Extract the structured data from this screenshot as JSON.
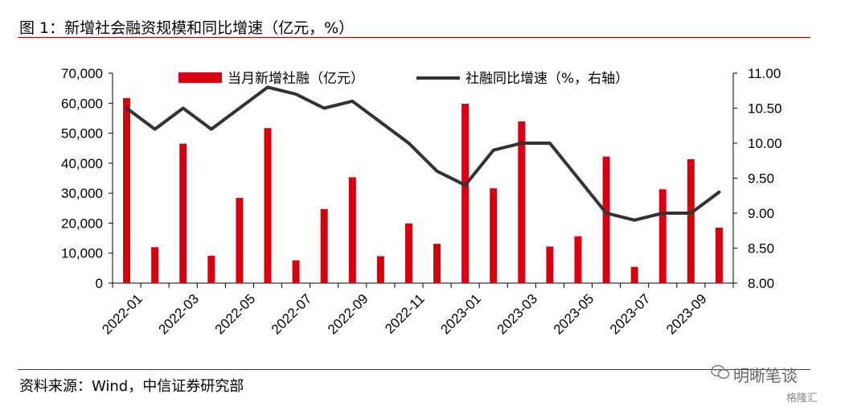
{
  "title": "图 1：新增社会融资规模和同比增速（亿元，%）",
  "source": "资料来源：Wind，中信证券研究部",
  "watermark": {
    "text": "明晰笔谈",
    "sub": "格隆汇"
  },
  "colors": {
    "bar": "#d7000f",
    "line": "#333333",
    "rule": "#c00000"
  },
  "chart_data": {
    "type": "bar",
    "categories": [
      "2022-01",
      "2022-02",
      "2022-03",
      "2022-04",
      "2022-05",
      "2022-06",
      "2022-07",
      "2022-08",
      "2022-09",
      "2022-10",
      "2022-11",
      "2022-12",
      "2023-01",
      "2023-02",
      "2023-03",
      "2023-04",
      "2023-05",
      "2023-06",
      "2023-07",
      "2023-08",
      "2023-09",
      "2023-10"
    ],
    "x_tick_labels": [
      "2022-01",
      "2022-03",
      "2022-05",
      "2022-07",
      "2022-09",
      "2022-11",
      "2023-01",
      "2023-03",
      "2023-05",
      "2023-07",
      "2023-09"
    ],
    "series": [
      {
        "name": "当月新增社融（亿元）",
        "type": "bar",
        "axis": "left",
        "values": [
          61700,
          12000,
          46500,
          9100,
          28400,
          51700,
          7600,
          24700,
          35300,
          9000,
          19900,
          13100,
          59800,
          31600,
          53900,
          12200,
          15600,
          42200,
          5400,
          31300,
          41300,
          18500
        ]
      },
      {
        "name": "社融同比增速（%，右轴）",
        "type": "line",
        "axis": "right",
        "values": [
          10.5,
          10.2,
          10.5,
          10.2,
          10.5,
          10.8,
          10.7,
          10.5,
          10.6,
          10.3,
          10.0,
          9.6,
          9.4,
          9.9,
          10.0,
          10.0,
          9.5,
          9.0,
          8.9,
          9.0,
          9.0,
          9.3
        ]
      }
    ],
    "y_left": {
      "min": 0,
      "max": 70000,
      "ticks": [
        "0",
        "10,000",
        "20,000",
        "30,000",
        "40,000",
        "50,000",
        "60,000",
        "70,000"
      ]
    },
    "y_right": {
      "min": 8.0,
      "max": 11.0,
      "ticks": [
        "8.00",
        "8.50",
        "9.00",
        "9.50",
        "10.00",
        "10.50",
        "11.00"
      ]
    },
    "legend_position": "top"
  }
}
